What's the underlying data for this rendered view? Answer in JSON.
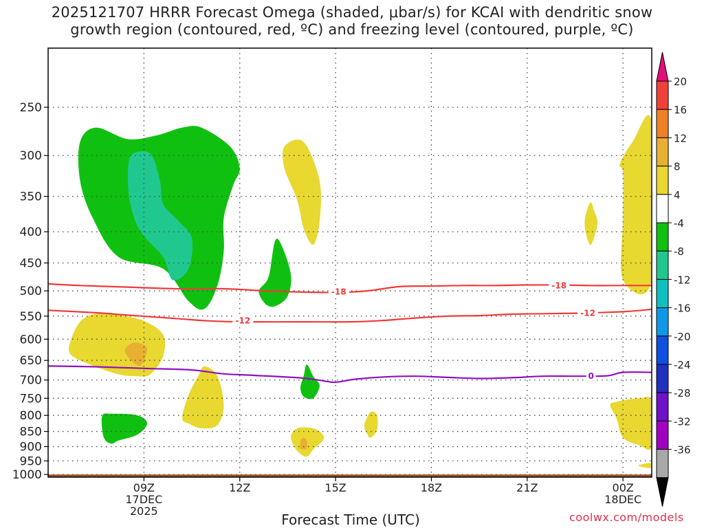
{
  "title_line1": "2025121707 HRRR Forecast Omega (shaded, μbar/s) for KCAI with dendritic snow",
  "title_line2": "growth region (contoured, red, ºC) and freezing level (contoured, purple, ºC)",
  "credit": "coolwx.com/models",
  "chart_data": {
    "type": "area",
    "xlabel": "Forecast Time (UTC)",
    "ylabel": "",
    "x_range_hours_utc_2025_12_17": [
      6.0,
      24.9
    ],
    "y_range_hpa": [
      200,
      1010
    ],
    "y_scale": "log-pressure (inverted, 1000 at bottom)",
    "grid": true,
    "y_ticks": [
      250,
      300,
      350,
      400,
      450,
      500,
      550,
      600,
      650,
      700,
      750,
      800,
      850,
      900,
      950,
      1000
    ],
    "x_ticks": [
      {
        "hour": 9,
        "label": "09Z",
        "sub": [
          "17DEC",
          "2025"
        ]
      },
      {
        "hour": 12,
        "label": "12Z",
        "sub": []
      },
      {
        "hour": 15,
        "label": "15Z",
        "sub": []
      },
      {
        "hour": 18,
        "label": "18Z",
        "sub": []
      },
      {
        "hour": 21,
        "label": "21Z",
        "sub": []
      },
      {
        "hour": 24,
        "label": "00Z",
        "sub": [
          "18DEC"
        ]
      }
    ],
    "colorbar": {
      "labels": [
        "20",
        "16",
        "12",
        "8",
        "4",
        "-4",
        "-8",
        "-12",
        "-16",
        "-20",
        "-24",
        "-28",
        "-32",
        "-36"
      ],
      "colors": [
        "#e0107a",
        "#f0403a",
        "#f08028",
        "#e8b030",
        "#e8d830",
        "#ffffff",
        "#10c010",
        "#20c890",
        "#10c0c0",
        "#1098e8",
        "#1050e0",
        "#2030c0",
        "#7010c8",
        "#a000c0",
        "#a8a8a8",
        "#000000"
      ],
      "top_arrow_color": "#e0107a",
      "bottom_arrow_color": "#000000"
    },
    "omega_regions": [
      {
        "color": "#10c010",
        "points": [
          [
            7.0,
            285
          ],
          [
            7.5,
            270
          ],
          [
            8.5,
            282
          ],
          [
            9.4,
            278
          ],
          [
            10.2,
            270
          ],
          [
            10.8,
            270
          ],
          [
            11.7,
            290
          ],
          [
            12.0,
            315
          ],
          [
            11.8,
            335
          ],
          [
            11.5,
            380
          ],
          [
            11.5,
            430
          ],
          [
            11.3,
            490
          ],
          [
            10.9,
            535
          ],
          [
            10.4,
            520
          ],
          [
            9.6,
            460
          ],
          [
            8.2,
            440
          ],
          [
            7.4,
            380
          ],
          [
            7.0,
            330
          ]
        ]
      },
      {
        "color": "#20c890",
        "points": [
          [
            8.6,
            300
          ],
          [
            9.2,
            298
          ],
          [
            9.5,
            330
          ],
          [
            9.6,
            360
          ],
          [
            10.1,
            385
          ],
          [
            10.5,
            410
          ],
          [
            10.4,
            460
          ],
          [
            9.9,
            480
          ],
          [
            9.6,
            440
          ],
          [
            8.9,
            400
          ],
          [
            8.6,
            365
          ],
          [
            8.5,
            330
          ]
        ]
      },
      {
        "color": "#e8d830",
        "points": [
          [
            13.4,
            290
          ],
          [
            14.0,
            285
          ],
          [
            14.5,
            330
          ],
          [
            14.5,
            385
          ],
          [
            14.3,
            420
          ],
          [
            14.0,
            395
          ],
          [
            13.8,
            355
          ],
          [
            13.4,
            315
          ]
        ]
      },
      {
        "color": "#10c010",
        "points": [
          [
            12.6,
            500
          ],
          [
            12.9,
            475
          ],
          [
            13.1,
            415
          ],
          [
            13.3,
            420
          ],
          [
            13.6,
            470
          ],
          [
            13.5,
            510
          ],
          [
            13.1,
            530
          ],
          [
            12.8,
            525
          ]
        ]
      },
      {
        "color": "#e8d830",
        "points": [
          [
            6.7,
            605
          ],
          [
            7.0,
            562
          ],
          [
            7.5,
            545
          ],
          [
            8.2,
            548
          ],
          [
            9.0,
            560
          ],
          [
            9.6,
            590
          ],
          [
            9.6,
            640
          ],
          [
            9.2,
            685
          ],
          [
            8.8,
            690
          ],
          [
            8.2,
            685
          ],
          [
            7.3,
            660
          ],
          [
            6.7,
            635
          ]
        ]
      },
      {
        "color": "#e8b030",
        "points": [
          [
            8.4,
            625
          ],
          [
            8.7,
            608
          ],
          [
            9.1,
            620
          ],
          [
            8.9,
            662
          ],
          [
            8.6,
            650
          ]
        ]
      },
      {
        "color": "#e8d830",
        "points": [
          [
            10.2,
            808
          ],
          [
            10.4,
            740
          ],
          [
            10.7,
            690
          ],
          [
            10.9,
            665
          ],
          [
            11.3,
            690
          ],
          [
            11.5,
            770
          ],
          [
            11.3,
            830
          ],
          [
            10.8,
            840
          ],
          [
            10.4,
            825
          ]
        ]
      },
      {
        "color": "#10c010",
        "points": [
          [
            13.9,
            720
          ],
          [
            14.0,
            690
          ],
          [
            14.1,
            660
          ],
          [
            14.3,
            690
          ],
          [
            14.5,
            715
          ],
          [
            14.3,
            750
          ],
          [
            14.0,
            745
          ]
        ]
      },
      {
        "color": "#10c010",
        "points": [
          [
            7.7,
            850
          ],
          [
            7.7,
            800
          ],
          [
            8.0,
            795
          ],
          [
            8.8,
            800
          ],
          [
            9.1,
            825
          ],
          [
            8.8,
            860
          ],
          [
            8.2,
            880
          ],
          [
            8.0,
            890
          ],
          [
            7.8,
            880
          ]
        ]
      },
      {
        "color": "#e8d830",
        "points": [
          [
            13.6,
            870
          ],
          [
            13.8,
            840
          ],
          [
            14.3,
            840
          ],
          [
            14.6,
            860
          ],
          [
            14.6,
            880
          ],
          [
            14.3,
            910
          ],
          [
            14.1,
            935
          ],
          [
            13.8,
            915
          ]
        ]
      },
      {
        "color": "#e8b030",
        "points": [
          [
            13.9,
            880
          ],
          [
            14.0,
            870
          ],
          [
            14.1,
            880
          ],
          [
            14.1,
            905
          ],
          [
            14.0,
            910
          ],
          [
            13.9,
            905
          ]
        ]
      },
      {
        "color": "#e8d830",
        "points": [
          [
            15.9,
            830
          ],
          [
            16.1,
            790
          ],
          [
            16.3,
            800
          ],
          [
            16.3,
            845
          ],
          [
            16.1,
            870
          ],
          [
            16.0,
            860
          ]
        ]
      },
      {
        "color": "#e8d830",
        "points": [
          [
            22.8,
            385
          ],
          [
            22.9,
            365
          ],
          [
            23.0,
            358
          ],
          [
            23.1,
            370
          ],
          [
            23.2,
            388
          ],
          [
            23.0,
            420
          ],
          [
            22.85,
            405
          ]
        ]
      },
      {
        "color": "#e8d830",
        "points": [
          [
            24.0,
            320
          ],
          [
            23.9,
            310
          ],
          [
            24.3,
            285
          ],
          [
            24.9,
            265
          ],
          [
            24.9,
            480
          ],
          [
            24.0,
            480
          ],
          [
            24.0,
            380
          ]
        ]
      },
      {
        "color": "#e8d830",
        "points": [
          [
            23.6,
            770
          ],
          [
            23.8,
            760
          ],
          [
            24.5,
            750
          ],
          [
            24.9,
            760
          ],
          [
            24.9,
            900
          ],
          [
            24.5,
            895
          ],
          [
            24.0,
            870
          ],
          [
            23.8,
            810
          ]
        ]
      },
      {
        "color": "#e8d830",
        "points": [
          [
            24.5,
            965
          ],
          [
            24.9,
            958
          ],
          [
            24.9,
            975
          ],
          [
            24.6,
            972
          ]
        ]
      }
    ],
    "contours": [
      {
        "label": "-18",
        "color": "#f03a3a",
        "label_at": [
          [
            15.1,
            502
          ],
          [
            22.0,
            490
          ]
        ],
        "points": [
          [
            6.0,
            487
          ],
          [
            7.0,
            490
          ],
          [
            8.5,
            493
          ],
          [
            10.0,
            496
          ],
          [
            11.5,
            496
          ],
          [
            12.8,
            500
          ],
          [
            13.8,
            502
          ],
          [
            15.0,
            503
          ],
          [
            16.0,
            500
          ],
          [
            17.0,
            492
          ],
          [
            18.0,
            491
          ],
          [
            19.0,
            490
          ],
          [
            20.0,
            490
          ],
          [
            21.0,
            489
          ],
          [
            22.0,
            489
          ],
          [
            23.0,
            490
          ],
          [
            24.0,
            490
          ],
          [
            24.9,
            490
          ]
        ]
      },
      {
        "label": "-12",
        "color": "#f03a3a",
        "label_at": [
          [
            12.1,
            560
          ],
          [
            22.9,
            544
          ]
        ],
        "points": [
          [
            6.0,
            538
          ],
          [
            7.5,
            543
          ],
          [
            8.5,
            548
          ],
          [
            10.0,
            555
          ],
          [
            11.0,
            560
          ],
          [
            12.0,
            562
          ],
          [
            14.0,
            562
          ],
          [
            15.5,
            562
          ],
          [
            16.5,
            559
          ],
          [
            17.5,
            554
          ],
          [
            18.5,
            550
          ],
          [
            19.5,
            549
          ],
          [
            20.5,
            546
          ],
          [
            21.5,
            545
          ],
          [
            22.5,
            544
          ],
          [
            24.0,
            541
          ],
          [
            24.9,
            536
          ]
        ]
      },
      {
        "label": "0",
        "color": "#9010c0",
        "label_at": [
          [
            23.0,
            690
          ]
        ],
        "points": [
          [
            6.0,
            664
          ],
          [
            7.5,
            666
          ],
          [
            9.0,
            670
          ],
          [
            10.5,
            674
          ],
          [
            11.5,
            684
          ],
          [
            12.5,
            688
          ],
          [
            14.0,
            695
          ],
          [
            14.6,
            702
          ],
          [
            15.0,
            706
          ],
          [
            15.6,
            698
          ],
          [
            16.5,
            692
          ],
          [
            17.5,
            690
          ],
          [
            18.5,
            693
          ],
          [
            19.5,
            696
          ],
          [
            20.5,
            694
          ],
          [
            21.5,
            690
          ],
          [
            22.5,
            690
          ],
          [
            23.5,
            689
          ],
          [
            24.0,
            680
          ],
          [
            24.9,
            680
          ]
        ]
      }
    ],
    "ground_level_hpa": 1000
  }
}
